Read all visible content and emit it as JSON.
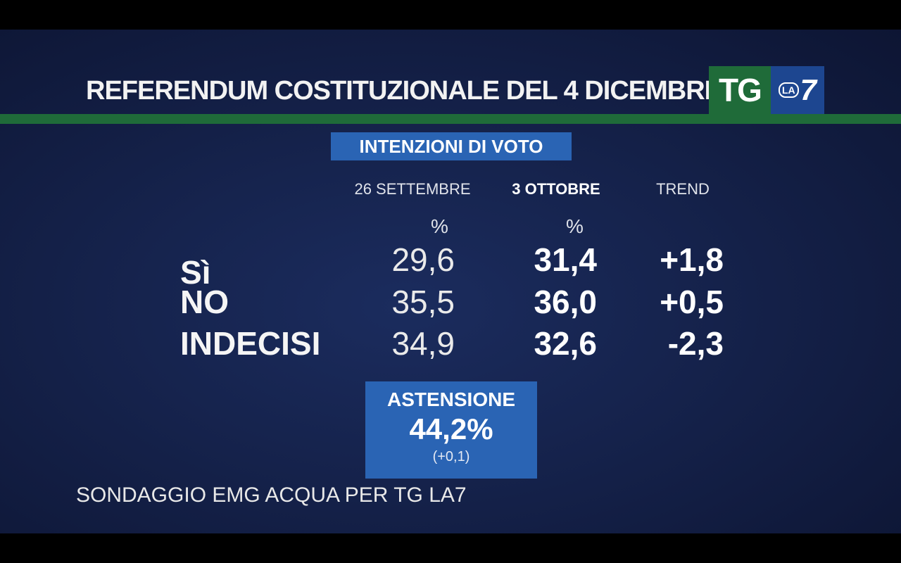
{
  "header": {
    "title": "REFERENDUM COSTITUZIONALE DEL 4 DICEMBRE",
    "logo": {
      "tg": "TG",
      "la": "LA",
      "seven": "7"
    }
  },
  "subtitle": "INTENZIONI DI VOTO",
  "columns": [
    "26 SETTEMBRE",
    "3 OTTOBRE",
    "TREND"
  ],
  "units": [
    "%",
    "%"
  ],
  "rows": [
    {
      "label": "Sì",
      "sep": "29,6",
      "oct": "31,4",
      "trend": "+1,8"
    },
    {
      "label": "NO",
      "sep": "35,5",
      "oct": "36,0",
      "trend": "+0,5"
    },
    {
      "label": "INDECISI",
      "sep": "34,9",
      "oct": "32,6",
      "trend": "-2,3"
    }
  ],
  "astensione": {
    "label": "ASTENSIONE",
    "value": "44,2%",
    "delta": "(+0,1)"
  },
  "source": "SONDAGGIO EMG ACQUA PER TG LA7",
  "colors": {
    "background": "#15224b",
    "green": "#1f6b39",
    "blue_box": "#2a64b4",
    "logo_blue": "#1d4690"
  }
}
